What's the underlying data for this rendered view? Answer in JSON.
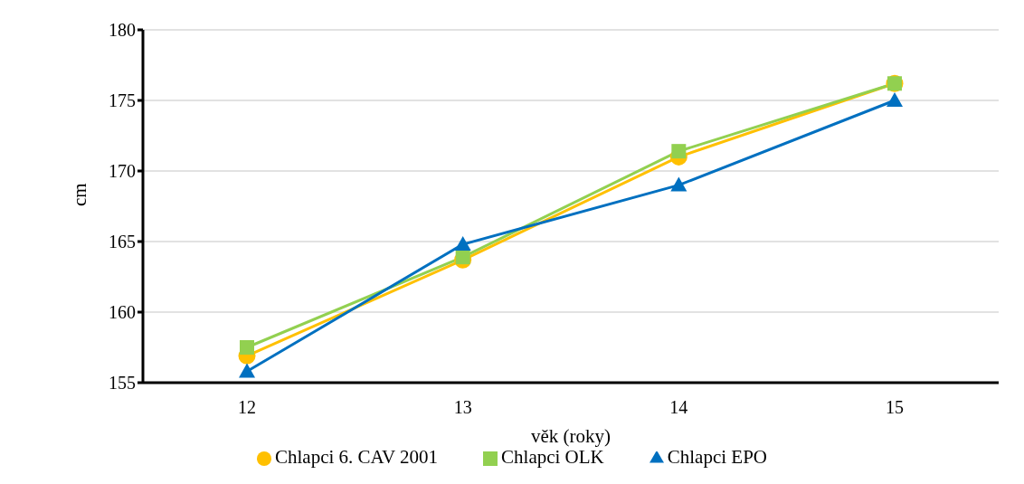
{
  "chart_data": {
    "type": "line",
    "xlabel": "věk (roky)",
    "ylabel": "cm",
    "categories": [
      "12",
      "13",
      "14",
      "15"
    ],
    "series": [
      {
        "name": "Chlapci 6. CAV 2001",
        "color": "#ffc000",
        "marker": "circle",
        "values": [
          156.9,
          163.7,
          171.0,
          176.2
        ]
      },
      {
        "name": "Chlapci OLK",
        "color": "#92d050",
        "marker": "square",
        "values": [
          157.5,
          163.9,
          171.4,
          176.2
        ]
      },
      {
        "name": "Chlapci EPO",
        "color": "#0070c0",
        "marker": "triangle",
        "values": [
          155.8,
          164.8,
          169.0,
          175.0
        ]
      }
    ],
    "ylim": [
      155,
      180
    ],
    "yticks": [
      155,
      160,
      165,
      170,
      175,
      180
    ],
    "grid": "y",
    "legend": "bottom"
  }
}
